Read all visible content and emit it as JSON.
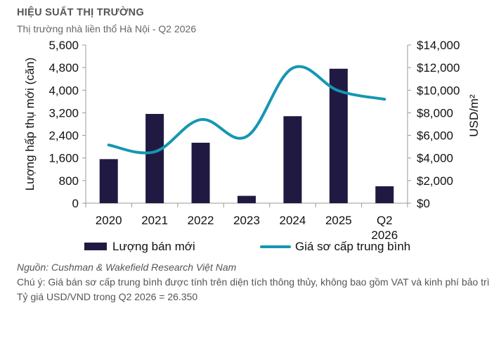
{
  "header": {
    "title": "HIỆU SUẤT THỊ TRƯỜNG",
    "subtitle": "Thị trường nhà liền thổ Hà Nội - Q2 2026"
  },
  "chart_data": {
    "type": "bar+line",
    "categories": [
      "2020",
      "2021",
      "2022",
      "2023",
      "2024",
      "2025",
      "Q2 2026"
    ],
    "series": [
      {
        "name": "Lượng bán mới",
        "type": "bar",
        "axis": "left",
        "color": "#201a42",
        "values": [
          1560,
          3160,
          2140,
          260,
          3080,
          4760,
          600
        ]
      },
      {
        "name": "Giá sơ cấp trung bình",
        "type": "line",
        "axis": "right",
        "color": "#1497b2",
        "values": [
          5150,
          4550,
          7400,
          5900,
          11950,
          9950,
          9200
        ]
      }
    ],
    "left_axis": {
      "label": "Lượng hấp thụ mới (căn)",
      "min": 0,
      "max": 5600,
      "ticks": [
        "0",
        "800",
        "1,600",
        "2,400",
        "3,200",
        "4,000",
        "4,800",
        "5,600"
      ]
    },
    "right_axis": {
      "label": "USD/m²",
      "min": 0,
      "max": 14000,
      "ticks": [
        "$0",
        "$2,000",
        "$4,000",
        "$6,000",
        "$8,000",
        "$10,000",
        "$12,000",
        "$14,000"
      ]
    },
    "legend_position": "bottom",
    "grid": false
  },
  "notes": {
    "source": "Nguồn: Cushman & Wakefield Research Việt Nam",
    "note": "Chú ý: Giá bán sơ cấp trung bình được tính trên diện tích thông thủy, không bao gồm VAT và kinh phí bảo trì",
    "rate": "Tỷ giá USD/VND trong Q2 2026 = 26.350"
  }
}
